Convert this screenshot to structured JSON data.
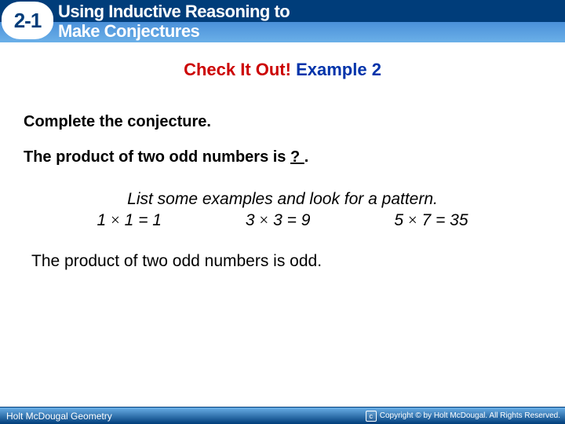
{
  "header": {
    "badge": "2-1",
    "title_line1": "Using Inductive Reasoning to",
    "title_line2": "Make Conjectures",
    "badge_bg": "#ffffff",
    "badge_color": "#003d7a",
    "bar_dark": "#003d7a",
    "bar_light_top": "#4a90d9",
    "bar_light_bottom": "#6bb0e8",
    "title_color": "#ffffff"
  },
  "check": {
    "red_text": "Check It Out!",
    "blue_text": "Example 2",
    "red_color": "#cc0000",
    "blue_color": "#0033aa",
    "fontsize": 22
  },
  "body": {
    "complete": "Complete the conjecture.",
    "product_prefix": "The product of two odd numbers is ",
    "blank": "  ?  ",
    "product_suffix": ".",
    "examples_intro": "List some examples and look for a pattern.",
    "examples": [
      {
        "a": 1,
        "b": 1,
        "r": 1
      },
      {
        "a": 3,
        "b": 3,
        "r": 9
      },
      {
        "a": 5,
        "b": 7,
        "r": 35
      }
    ],
    "mul_sign": "×",
    "conclusion": "The product of two odd numbers is odd.",
    "font_main": "Verdana",
    "fontsize_bold": 20,
    "fontsize_body": 21
  },
  "footer": {
    "left": "Holt McDougal Geometry",
    "right": "Copyright © by Holt McDougal. All Rights Reserved.",
    "bg_top": "#6bb0e8",
    "bg_bottom": "#003d7a",
    "text_color": "#ffffff"
  }
}
